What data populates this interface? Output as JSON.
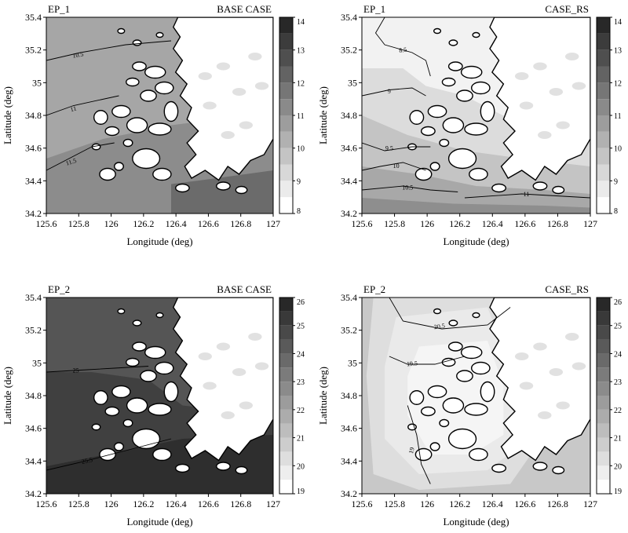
{
  "chart_data": [
    {
      "type": "contour",
      "episode_label": "EP_1",
      "case_label": "BASE CASE",
      "xlabel": "Longitude (deg)",
      "ylabel": "Latitude (deg)",
      "xlim": [
        125.6,
        127
      ],
      "ylim": [
        34.2,
        35.4
      ],
      "x_ticks": [
        "125.6",
        "125.8",
        "126",
        "126.2",
        "126.4",
        "126.6",
        "126.8",
        "127"
      ],
      "y_ticks": [
        "34.2",
        "34.4",
        "34.6",
        "34.8",
        "35",
        "35.2",
        "35.4"
      ],
      "colorbar": {
        "min": 8,
        "max": 14,
        "tick_labels": [
          "8",
          "9",
          "10",
          "11",
          "12",
          "13",
          "14"
        ]
      },
      "contour_labels": [
        "10.5",
        "11",
        "11.5"
      ]
    },
    {
      "type": "contour",
      "episode_label": "EP_1",
      "case_label": "CASE_RS",
      "xlabel": "Longitude (deg)",
      "ylabel": "Latitude (deg)",
      "xlim": [
        125.6,
        127
      ],
      "ylim": [
        34.2,
        35.4
      ],
      "x_ticks": [
        "125.6",
        "125.8",
        "126",
        "126.2",
        "126.4",
        "126.6",
        "126.8",
        "127"
      ],
      "y_ticks": [
        "34.2",
        "34.4",
        "34.6",
        "34.8",
        "35",
        "35.2",
        "35.4"
      ],
      "colorbar": {
        "min": 8,
        "max": 14,
        "tick_labels": [
          "8",
          "9",
          "10",
          "11",
          "12",
          "13",
          "14"
        ]
      },
      "contour_labels": [
        "8.5",
        "9",
        "9.5",
        "10",
        "10.5",
        "11"
      ]
    },
    {
      "type": "contour",
      "episode_label": "EP_2",
      "case_label": "BASE CASE",
      "xlabel": "Longitude (deg)",
      "ylabel": "Latitude (deg)",
      "xlim": [
        125.6,
        127
      ],
      "ylim": [
        34.2,
        35.4
      ],
      "x_ticks": [
        "125.6",
        "125.8",
        "126",
        "126.2",
        "126.4",
        "126.6",
        "126.8",
        "127"
      ],
      "y_ticks": [
        "34.2",
        "34.4",
        "34.6",
        "34.8",
        "35",
        "35.2",
        "35.4"
      ],
      "colorbar": {
        "min": 19,
        "max": 26,
        "tick_labels": [
          "19",
          "20",
          "21",
          "22",
          "23",
          "24",
          "25",
          "26"
        ]
      },
      "contour_labels": [
        "25",
        "25.5"
      ]
    },
    {
      "type": "contour",
      "episode_label": "EP_2",
      "case_label": "CASE_RS",
      "xlabel": "Longitude (deg)",
      "ylabel": "Latitude (deg)",
      "xlim": [
        125.6,
        127
      ],
      "ylim": [
        34.2,
        35.4
      ],
      "x_ticks": [
        "125.6",
        "125.8",
        "126",
        "126.2",
        "126.4",
        "126.6",
        "126.8",
        "127"
      ],
      "y_ticks": [
        "34.2",
        "34.4",
        "34.6",
        "34.8",
        "35",
        "35.2",
        "35.4"
      ],
      "colorbar": {
        "min": 19,
        "max": 26,
        "tick_labels": [
          "19",
          "20",
          "21",
          "22",
          "23",
          "24",
          "25",
          "26"
        ]
      },
      "contour_labels": [
        "20.5",
        "19.5",
        "19"
      ]
    }
  ]
}
